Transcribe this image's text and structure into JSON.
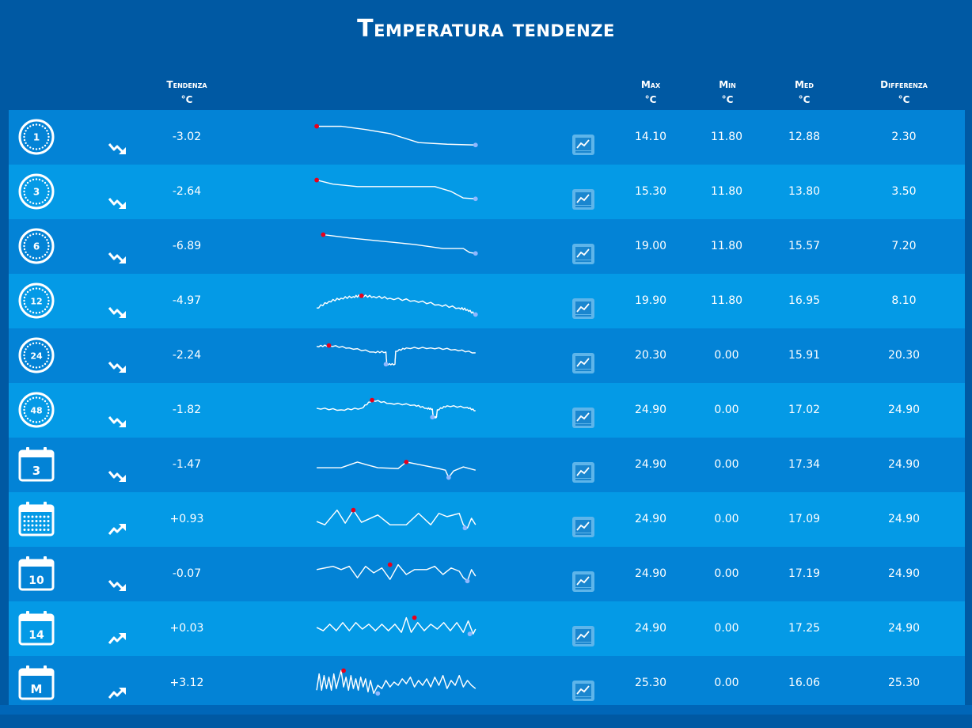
{
  "title": "Temperatura tendenze",
  "headers": {
    "trend": [
      "Tendenza",
      "°C"
    ],
    "max": [
      "Max",
      "°C"
    ],
    "min": [
      "Min",
      "°C"
    ],
    "med": [
      "Med",
      "°C"
    ],
    "diff": [
      "Differenza",
      "°C"
    ]
  },
  "colors": {
    "background": "#0059a3",
    "row_dark": "#0383d6",
    "row_light": "#049ae6",
    "max_marker": "#e8001c",
    "min_marker": "#8fb8ff"
  },
  "rows": [
    {
      "period_icon": "clock-icon",
      "period_label": "1",
      "trend_icon": "trend-down-icon",
      "trend": "-3.02",
      "max": "14.10",
      "min": "11.80",
      "med": "12.88",
      "diff": "2.30"
    },
    {
      "period_icon": "clock-icon",
      "period_label": "3",
      "trend_icon": "trend-down-icon",
      "trend": "-2.64",
      "max": "15.30",
      "min": "11.80",
      "med": "13.80",
      "diff": "3.50"
    },
    {
      "period_icon": "clock-icon",
      "period_label": "6",
      "trend_icon": "trend-down-icon",
      "trend": "-6.89",
      "max": "19.00",
      "min": "11.80",
      "med": "15.57",
      "diff": "7.20"
    },
    {
      "period_icon": "clock-icon",
      "period_label": "12",
      "trend_icon": "trend-down-icon",
      "trend": "-4.97",
      "max": "19.90",
      "min": "11.80",
      "med": "16.95",
      "diff": "8.10"
    },
    {
      "period_icon": "clock-icon",
      "period_label": "24",
      "trend_icon": "trend-down-icon",
      "trend": "-2.24",
      "max": "20.30",
      "min": "0.00",
      "med": "15.91",
      "diff": "20.30"
    },
    {
      "period_icon": "clock-icon",
      "period_label": "48",
      "trend_icon": "trend-down-icon",
      "trend": "-1.82",
      "max": "24.90",
      "min": "0.00",
      "med": "17.02",
      "diff": "24.90"
    },
    {
      "period_icon": "calendar-icon",
      "period_label": "3",
      "trend_icon": "trend-down-icon",
      "trend": "-1.47",
      "max": "24.90",
      "min": "0.00",
      "med": "17.34",
      "diff": "24.90"
    },
    {
      "period_icon": "calendar-grid-icon",
      "period_label": "",
      "trend_icon": "trend-up-icon",
      "trend": "+0.93",
      "max": "24.90",
      "min": "0.00",
      "med": "17.09",
      "diff": "24.90"
    },
    {
      "period_icon": "calendar-icon",
      "period_label": "10",
      "trend_icon": "trend-down-icon",
      "trend": "-0.07",
      "max": "24.90",
      "min": "0.00",
      "med": "17.19",
      "diff": "24.90"
    },
    {
      "period_icon": "calendar-icon",
      "period_label": "14",
      "trend_icon": "trend-up-icon",
      "trend": "+0.03",
      "max": "24.90",
      "min": "0.00",
      "med": "17.25",
      "diff": "24.90"
    },
    {
      "period_icon": "calendar-icon",
      "period_label": "M",
      "trend_icon": "trend-up-icon",
      "trend": "+3.12",
      "max": "25.30",
      "min": "0.00",
      "med": "16.06",
      "diff": "25.30"
    }
  ]
}
